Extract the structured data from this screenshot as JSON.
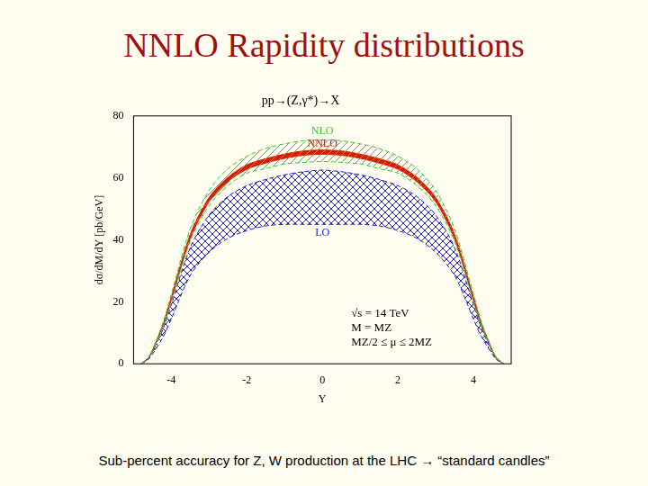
{
  "title": "NNLO Rapidity distributions",
  "caption": "Sub-percent accuracy for Z, W production at the LHC → “standard candles”",
  "chart_data": {
    "type": "line",
    "title": "pp→(Z,γ*)→X",
    "x_label": "Y",
    "y_label": "dσ/dM/dY [pb/GeV]",
    "x": [
      -4.8,
      -4.6,
      -4.4,
      -4.2,
      -4.0,
      -3.5,
      -3.0,
      -2.5,
      -2.0,
      -1.5,
      -1.0,
      -0.5,
      0,
      0.5,
      1.0,
      1.5,
      2.0,
      2.5,
      3.0,
      3.5,
      4.0,
      4.2,
      4.4,
      4.6,
      4.8
    ],
    "series": [
      {
        "name": "NLO",
        "color": "#33cc33",
        "line_style": "dashed",
        "upper": [
          0,
          2.2,
          7.5,
          14,
          22.5,
          43.5,
          56,
          63,
          67,
          69.5,
          71,
          72,
          72.3,
          72,
          71,
          69.5,
          67,
          63,
          56,
          43.5,
          22.5,
          14,
          7.5,
          2.2,
          0
        ],
        "lower": [
          0,
          1.9,
          6.7,
          12.5,
          20,
          39.5,
          51,
          57.5,
          61.5,
          63,
          64.5,
          65,
          65.3,
          65,
          64.5,
          63,
          61.5,
          57.5,
          51,
          39.5,
          20,
          12.5,
          6.7,
          1.9,
          0
        ]
      },
      {
        "name": "NNLO",
        "color": "#cc2200",
        "line_style": "solid",
        "upper": [
          0,
          2.1,
          7.2,
          13.4,
          21.5,
          41.7,
          53.7,
          60.2,
          64.2,
          66.2,
          67.7,
          68.7,
          69,
          68.7,
          67.7,
          66.2,
          64.2,
          60.2,
          53.7,
          41.7,
          21.5,
          13.4,
          7.2,
          2.1,
          0
        ],
        "lower": [
          0,
          1.9,
          6.8,
          12.6,
          20.5,
          40.3,
          52.3,
          58.8,
          62.8,
          64.8,
          66.3,
          67.3,
          67.6,
          67.3,
          66.3,
          64.8,
          62.8,
          58.8,
          52.3,
          40.3,
          20.5,
          12.6,
          6.8,
          1.9,
          0
        ]
      },
      {
        "name": "LO",
        "color": "#2222cc",
        "line_style": "dashed",
        "upper": [
          0,
          1.8,
          6.3,
          11.8,
          19,
          37.5,
          48,
          54,
          57.5,
          59.5,
          61,
          62,
          62.5,
          62,
          61,
          59.5,
          57.5,
          54,
          48,
          37.5,
          19,
          11.8,
          6.3,
          1.8,
          0
        ],
        "lower": [
          0,
          1.5,
          5,
          9,
          14.5,
          28.5,
          36,
          40.5,
          43,
          44.5,
          45,
          45,
          45,
          45,
          45,
          44.5,
          43,
          40.5,
          36,
          28.5,
          14.5,
          9,
          5,
          1.5,
          0
        ]
      }
    ],
    "annotations": [
      "√s = 14 TeV",
      "M = MZ",
      "MZ/2 ≤ μ ≤ 2MZ"
    ],
    "xlim": [
      -5,
      5
    ],
    "xticks": [
      -4,
      -2,
      0,
      2,
      4
    ],
    "ylim": [
      0,
      80
    ],
    "yticks": [
      0,
      20,
      40,
      60,
      80
    ],
    "grid": false,
    "legend": "none"
  }
}
